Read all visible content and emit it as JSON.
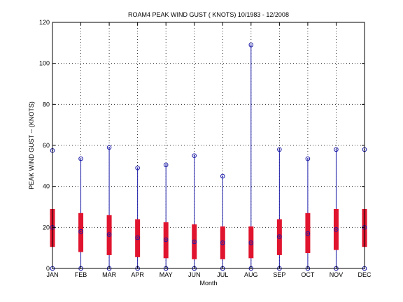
{
  "chart_data": {
    "type": "box",
    "title": "ROAM4  PEAK WIND GUST ( KNOTS) 10/1983 - 12/2008",
    "xlabel": "Month",
    "ylabel": "PEAK WIND GUST --  (KNOTS)",
    "ylim": [
      0,
      120
    ],
    "yticks": [
      0,
      20,
      40,
      60,
      80,
      100,
      120
    ],
    "grid": true,
    "colors": {
      "whisker": "#1c1ca8",
      "box": "#e0142e",
      "marker": "#1c1ca8",
      "axis": "#000000",
      "grid": "#000000"
    },
    "categories": [
      "JAN",
      "FEB",
      "MAR",
      "APR",
      "MAY",
      "JUN",
      "JUL",
      "AUG",
      "SEP",
      "OCT",
      "NOV",
      "DEC"
    ],
    "series": [
      {
        "min": 0,
        "q1": 10.5,
        "median": 20,
        "q3": 29,
        "max": 57.5
      },
      {
        "min": 0,
        "q1": 8,
        "median": 18,
        "q3": 27,
        "max": 53.5
      },
      {
        "min": 0,
        "q1": 6.5,
        "median": 16.5,
        "q3": 26,
        "max": 59
      },
      {
        "min": 0,
        "q1": 5.5,
        "median": 15,
        "q3": 24,
        "max": 49
      },
      {
        "min": 0,
        "q1": 5,
        "median": 14,
        "q3": 22.5,
        "max": 50.5
      },
      {
        "min": 0,
        "q1": 4.5,
        "median": 13,
        "q3": 21.5,
        "max": 55
      },
      {
        "min": 0,
        "q1": 4.5,
        "median": 12.5,
        "q3": 20.5,
        "max": 45
      },
      {
        "min": 0,
        "q1": 5,
        "median": 12.5,
        "q3": 20.5,
        "max": 109
      },
      {
        "min": 0,
        "q1": 6.5,
        "median": 15.5,
        "q3": 24,
        "max": 58
      },
      {
        "min": 0,
        "q1": 7.5,
        "median": 17,
        "q3": 27,
        "max": 53.5
      },
      {
        "min": 0,
        "q1": 9,
        "median": 19,
        "q3": 29,
        "max": 58
      },
      {
        "min": 0,
        "q1": 10.5,
        "median": 20,
        "q3": 29,
        "max": 58
      }
    ]
  }
}
